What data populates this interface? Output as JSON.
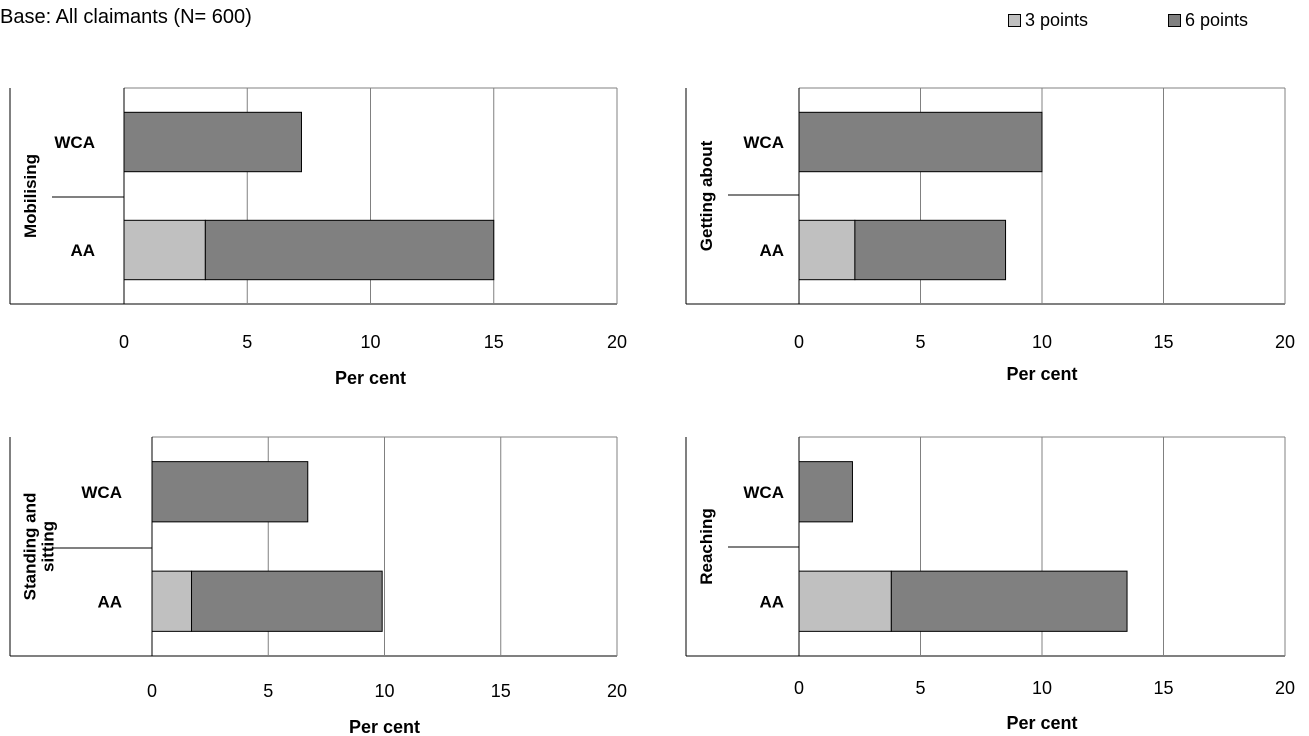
{
  "header": {
    "base_note": "Base: All claimants (N= 600)"
  },
  "legend": [
    {
      "label": "3 points",
      "color": "#c0c0c0"
    },
    {
      "label": "6 points",
      "color": "#808080"
    }
  ],
  "chart_data": [
    {
      "type": "bar",
      "stacked": true,
      "orientation": "horizontal",
      "category_label": "Mobilising",
      "categories": [
        "WCA",
        "AA"
      ],
      "series": [
        {
          "name": "3 points",
          "values": [
            0,
            3.3
          ]
        },
        {
          "name": "6 points",
          "values": [
            7.2,
            11.7
          ]
        }
      ],
      "xlabel": "Per cent",
      "xlim": [
        0,
        20
      ],
      "xticks": [
        "0",
        "5",
        "10",
        "15",
        "20"
      ],
      "grid": true
    },
    {
      "type": "bar",
      "stacked": true,
      "orientation": "horizontal",
      "category_label": "Getting about",
      "categories": [
        "WCA",
        "AA"
      ],
      "series": [
        {
          "name": "3 points",
          "values": [
            0,
            2.3
          ]
        },
        {
          "name": "6 points",
          "values": [
            10.0,
            6.2
          ]
        }
      ],
      "xlabel": "Per cent",
      "xlim": [
        0,
        20
      ],
      "xticks": [
        "0",
        "5",
        "10",
        "15",
        "20"
      ],
      "grid": true
    },
    {
      "type": "bar",
      "stacked": true,
      "orientation": "horizontal",
      "category_label": "Standing and sitting",
      "categories": [
        "WCA",
        "AA"
      ],
      "series": [
        {
          "name": "3 points",
          "values": [
            0,
            1.7
          ]
        },
        {
          "name": "6 points",
          "values": [
            6.7,
            8.2
          ]
        }
      ],
      "xlabel": "Per cent",
      "xlim": [
        0,
        20
      ],
      "xticks": [
        "0",
        "5",
        "10",
        "15",
        "20"
      ],
      "grid": true
    },
    {
      "type": "bar",
      "stacked": true,
      "orientation": "horizontal",
      "category_label": "Reaching",
      "categories": [
        "WCA",
        "AA"
      ],
      "series": [
        {
          "name": "3 points",
          "values": [
            0,
            3.8
          ]
        },
        {
          "name": "6 points",
          "values": [
            2.2,
            9.7
          ]
        }
      ],
      "xlabel": "Per cent",
      "xlim": [
        0,
        20
      ],
      "xticks": [
        "0",
        "5",
        "10",
        "15",
        "20"
      ],
      "grid": true
    }
  ]
}
